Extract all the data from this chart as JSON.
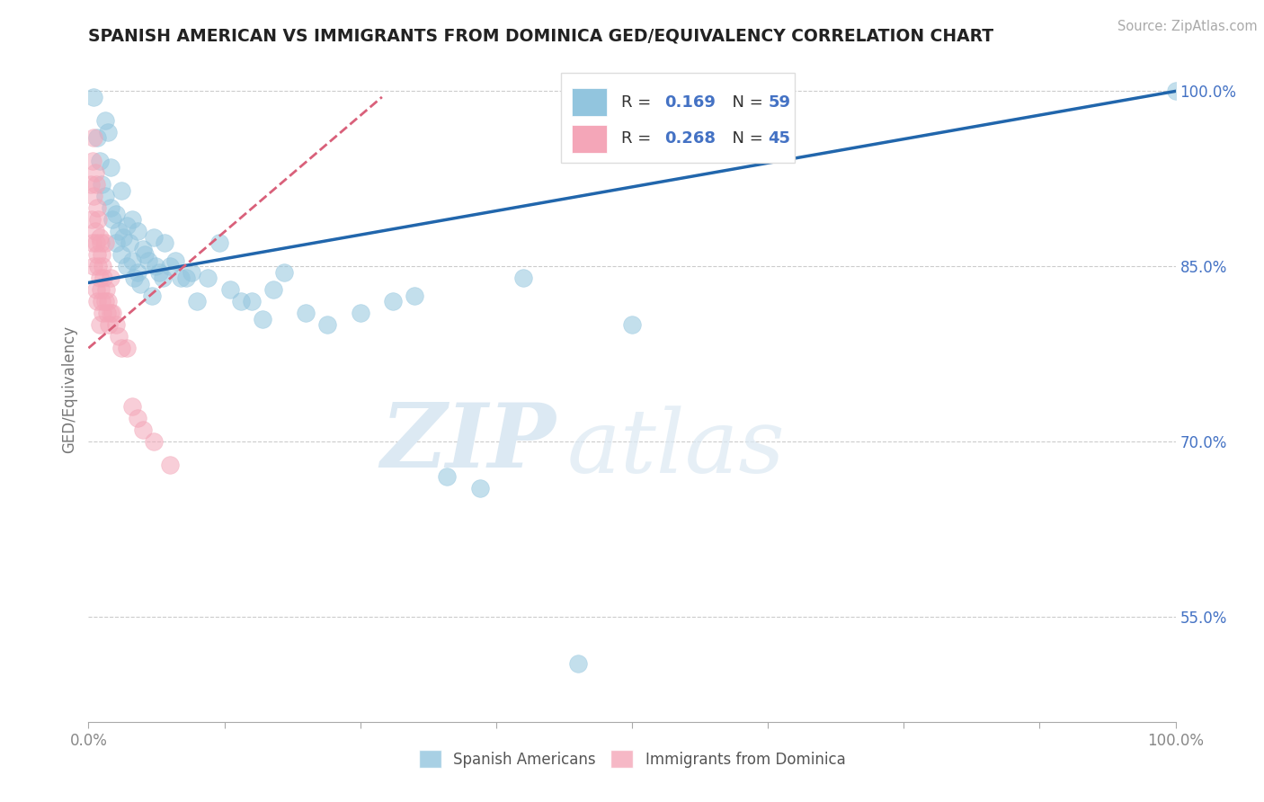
{
  "title": "SPANISH AMERICAN VS IMMIGRANTS FROM DOMINICA GED/EQUIVALENCY CORRELATION CHART",
  "source": "Source: ZipAtlas.com",
  "ylabel": "GED/Equivalency",
  "xlim": [
    0.0,
    1.0
  ],
  "ylim": [
    0.46,
    1.03
  ],
  "ytick_labels": [
    "55.0%",
    "70.0%",
    "85.0%",
    "100.0%"
  ],
  "ytick_values": [
    0.55,
    0.7,
    0.85,
    1.0
  ],
  "R_blue": 0.169,
  "N_blue": 59,
  "R_pink": 0.268,
  "N_pink": 45,
  "blue_color": "#92c5de",
  "pink_color": "#f4a6b8",
  "trend_blue_color": "#2166ac",
  "trend_pink_color": "#d9607a",
  "legend_label_blue": "Spanish Americans",
  "legend_label_pink": "Immigrants from Dominica",
  "blue_scatter_x": [
    0.005,
    0.008,
    0.01,
    0.012,
    0.015,
    0.015,
    0.018,
    0.02,
    0.02,
    0.022,
    0.025,
    0.025,
    0.028,
    0.03,
    0.03,
    0.032,
    0.035,
    0.035,
    0.038,
    0.04,
    0.04,
    0.042,
    0.045,
    0.045,
    0.048,
    0.05,
    0.052,
    0.055,
    0.058,
    0.06,
    0.062,
    0.065,
    0.068,
    0.07,
    0.075,
    0.08,
    0.085,
    0.09,
    0.095,
    0.1,
    0.11,
    0.12,
    0.13,
    0.14,
    0.15,
    0.16,
    0.17,
    0.18,
    0.2,
    0.22,
    0.25,
    0.28,
    0.3,
    0.33,
    0.36,
    0.4,
    0.45,
    0.5,
    1.0
  ],
  "blue_scatter_y": [
    0.995,
    0.96,
    0.94,
    0.92,
    0.975,
    0.91,
    0.965,
    0.9,
    0.935,
    0.89,
    0.895,
    0.87,
    0.88,
    0.915,
    0.86,
    0.875,
    0.885,
    0.85,
    0.87,
    0.89,
    0.855,
    0.84,
    0.88,
    0.845,
    0.835,
    0.865,
    0.86,
    0.855,
    0.825,
    0.875,
    0.85,
    0.845,
    0.84,
    0.87,
    0.85,
    0.855,
    0.84,
    0.84,
    0.845,
    0.82,
    0.84,
    0.87,
    0.83,
    0.82,
    0.82,
    0.805,
    0.83,
    0.845,
    0.81,
    0.8,
    0.81,
    0.82,
    0.825,
    0.67,
    0.66,
    0.84,
    0.51,
    0.8,
    1.0
  ],
  "pink_scatter_x": [
    0.002,
    0.003,
    0.004,
    0.004,
    0.005,
    0.005,
    0.005,
    0.006,
    0.006,
    0.007,
    0.007,
    0.007,
    0.008,
    0.008,
    0.008,
    0.009,
    0.009,
    0.01,
    0.01,
    0.01,
    0.011,
    0.011,
    0.012,
    0.012,
    0.013,
    0.013,
    0.014,
    0.015,
    0.015,
    0.016,
    0.017,
    0.018,
    0.019,
    0.02,
    0.02,
    0.022,
    0.025,
    0.028,
    0.03,
    0.035,
    0.04,
    0.045,
    0.05,
    0.06,
    0.075
  ],
  "pink_scatter_y": [
    0.92,
    0.89,
    0.94,
    0.87,
    0.96,
    0.91,
    0.85,
    0.93,
    0.88,
    0.92,
    0.87,
    0.83,
    0.9,
    0.86,
    0.82,
    0.89,
    0.85,
    0.875,
    0.84,
    0.8,
    0.87,
    0.83,
    0.86,
    0.82,
    0.85,
    0.81,
    0.84,
    0.87,
    0.82,
    0.83,
    0.81,
    0.82,
    0.8,
    0.84,
    0.81,
    0.81,
    0.8,
    0.79,
    0.78,
    0.78,
    0.73,
    0.72,
    0.71,
    0.7,
    0.68
  ],
  "watermark_zip": "ZIP",
  "watermark_atlas": "atlas",
  "background_color": "#ffffff",
  "grid_color": "#cccccc"
}
